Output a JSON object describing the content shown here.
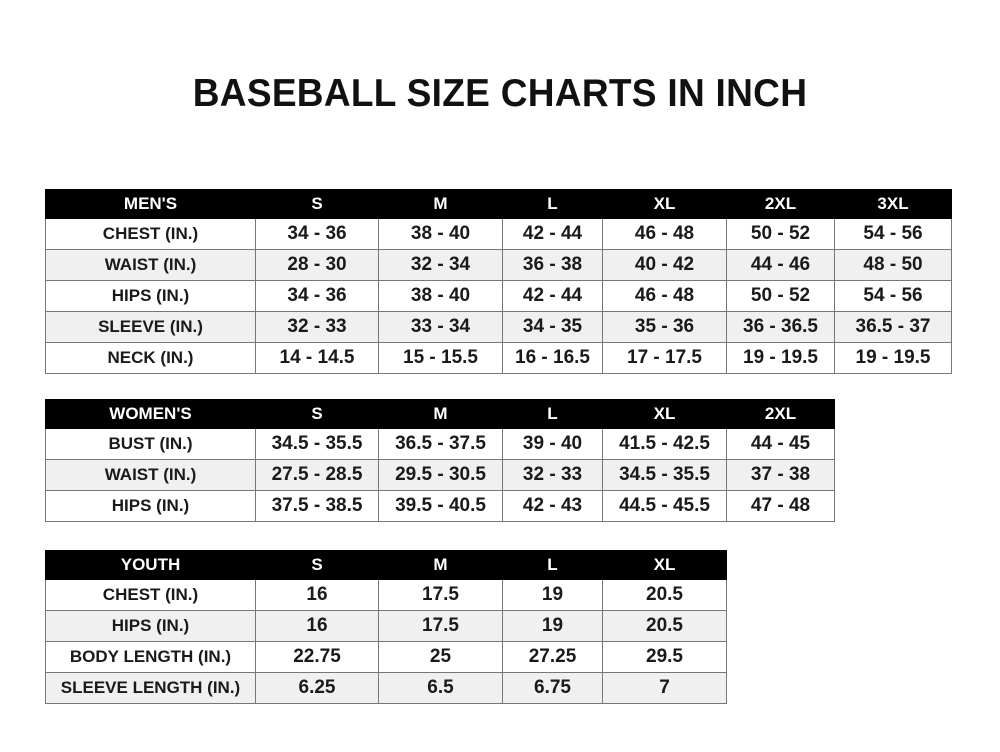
{
  "title": "BASEBALL SIZE CHARTS IN INCH",
  "tables": [
    {
      "id": "men",
      "header": [
        "MEN'S",
        "S",
        "M",
        "L",
        "XL",
        "2XL",
        "3XL"
      ],
      "rows": [
        [
          "CHEST (IN.)",
          "34 - 36",
          "38 - 40",
          "42 - 44",
          "46 - 48",
          "50 - 52",
          "54 - 56"
        ],
        [
          "WAIST (IN.)",
          "28 - 30",
          "32 - 34",
          "36 - 38",
          "40 - 42",
          "44 - 46",
          "48 - 50"
        ],
        [
          "HIPS (IN.)",
          "34 - 36",
          "38 - 40",
          "42 - 44",
          "46 - 48",
          "50 - 52",
          "54 - 56"
        ],
        [
          "SLEEVE (IN.)",
          "32 - 33",
          "33 - 34",
          "34 - 35",
          "35 - 36",
          "36 - 36.5",
          "36.5 - 37"
        ],
        [
          "NECK (IN.)",
          "14 - 14.5",
          "15 - 15.5",
          "16 - 16.5",
          "17 - 17.5",
          "19 - 19.5",
          "19 - 19.5"
        ]
      ]
    },
    {
      "id": "women",
      "header": [
        "WOMEN'S",
        "S",
        "M",
        "L",
        "XL",
        "2XL"
      ],
      "rows": [
        [
          "BUST (IN.)",
          "34.5 - 35.5",
          "36.5 - 37.5",
          "39 - 40",
          "41.5 - 42.5",
          "44 - 45"
        ],
        [
          "WAIST (IN.)",
          "27.5 - 28.5",
          "29.5 - 30.5",
          "32 - 33",
          "34.5 - 35.5",
          "37 - 38"
        ],
        [
          "HIPS (IN.)",
          "37.5 - 38.5",
          "39.5 - 40.5",
          "42 - 43",
          "44.5 - 45.5",
          "47 - 48"
        ]
      ]
    },
    {
      "id": "youth",
      "header": [
        "YOUTH",
        "S",
        "M",
        "L",
        "XL"
      ],
      "rows": [
        [
          "CHEST (IN.)",
          "16",
          "17.5",
          "19",
          "20.5"
        ],
        [
          "HIPS (IN.)",
          "16",
          "17.5",
          "19",
          "20.5"
        ],
        [
          "BODY LENGTH (IN.)",
          "22.75",
          "25",
          "27.25",
          "29.5"
        ],
        [
          "SLEEVE LENGTH (IN.)",
          "6.25",
          "6.5",
          "6.75",
          "7"
        ]
      ]
    }
  ]
}
